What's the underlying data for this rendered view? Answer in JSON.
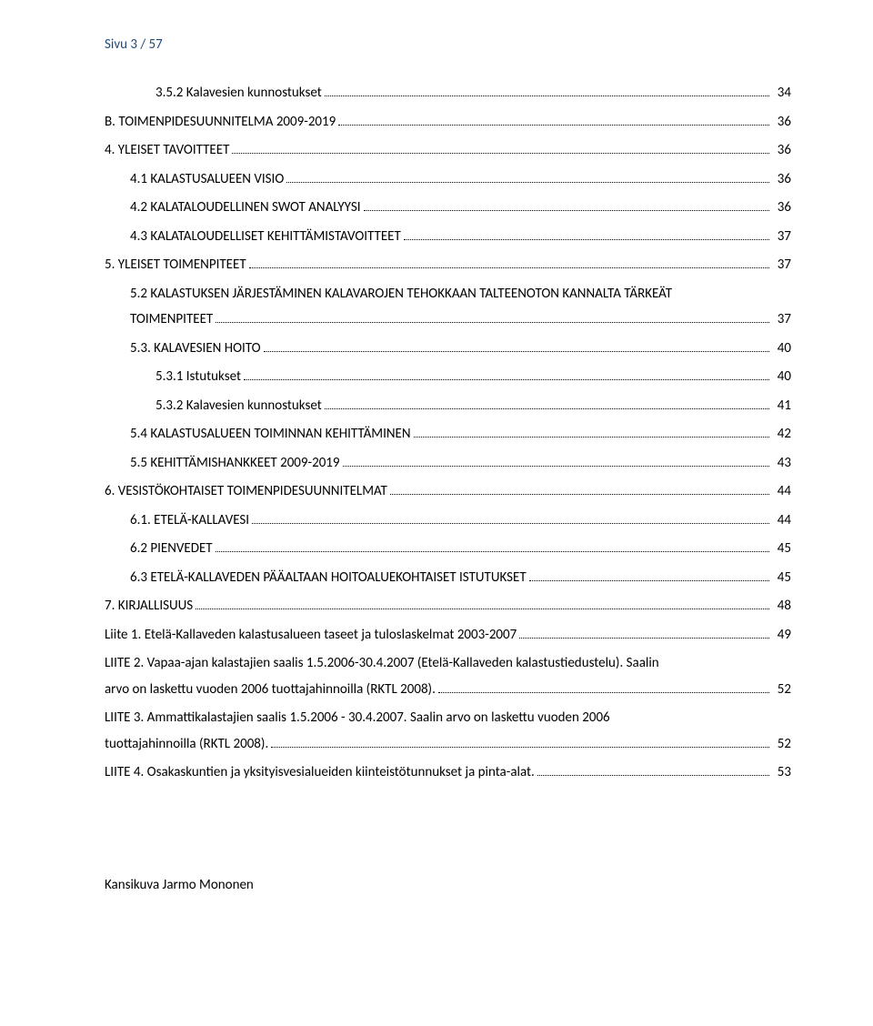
{
  "page_indicator": "Sivu 3 / 57",
  "caption": "Kansikuva Jarmo Mononen",
  "toc": [
    {
      "level": 2,
      "text": "3.5.2 Kalavesien kunnostukset",
      "page": "34"
    },
    {
      "level": 0,
      "text": "B. TOIMENPIDESUUNNITELMA 2009-2019",
      "page": "36"
    },
    {
      "level": 0,
      "text": "4. YLEISET TAVOITTEET",
      "page": "36"
    },
    {
      "level": 1,
      "text": "4.1 KALASTUSALUEEN VISIO",
      "page": "36"
    },
    {
      "level": 1,
      "text": "4.2 KALATALOUDELLINEN SWOT ANALYYSI",
      "page": "36"
    },
    {
      "level": 1,
      "text": "4.3 KALATALOUDELLISET KEHITTÄMISTAVOITTEET",
      "page": "37"
    },
    {
      "level": 0,
      "text": "5. YLEISET TOIMENPITEET",
      "page": "37"
    },
    {
      "type": "para",
      "level": 1,
      "lines": [
        "5.2 KALASTUKSEN JÄRJESTÄMINEN KALAVAROJEN TEHOKKAAN TALTEENOTON KANNALTA TÄRKEÄT"
      ],
      "last": "TOIMENPITEET",
      "page": "37"
    },
    {
      "level": 1,
      "text": "5.3. KALAVESIEN HOITO",
      "page": "40"
    },
    {
      "level": 2,
      "text": "5.3.1 Istutukset",
      "page": "40"
    },
    {
      "level": 2,
      "text": "5.3.2 Kalavesien kunnostukset",
      "page": "41"
    },
    {
      "level": 1,
      "text": "5.4 KALASTUSALUEEN TOIMINNAN KEHITTÄMINEN",
      "page": "42"
    },
    {
      "level": 1,
      "text": "5.5 KEHITTÄMISHANKKEET 2009-2019",
      "page": "43"
    },
    {
      "level": 0,
      "text": "6. VESISTÖKOHTAISET TOIMENPIDESUUNNITELMAT",
      "page": "44"
    },
    {
      "level": 1,
      "text": "6.1. ETELÄ-KALLAVESI",
      "page": "44"
    },
    {
      "level": 1,
      "text": "6.2 PIENVEDET",
      "page": "45"
    },
    {
      "level": 1,
      "text": "6.3 ETELÄ-KALLAVEDEN PÄÄALTAAN HOITOALUEKOHTAISET ISTUTUKSET",
      "page": "45"
    },
    {
      "level": 0,
      "text": "7. KIRJALLISUUS",
      "page": "48"
    },
    {
      "level": 0,
      "text": "Liite 1. Etelä-Kallaveden kalastusalueen taseet ja tuloslaskelmat 2003-2007",
      "page": "49"
    },
    {
      "type": "para",
      "level": 0,
      "lines": [
        "LIITE 2. Vapaa-ajan kalastajien saalis 1.5.2006-30.4.2007 (Etelä-Kallaveden kalastustiedustelu). Saalin"
      ],
      "last": "arvo on laskettu vuoden 2006 tuottajahinnoilla (RKTL 2008).",
      "page": "52"
    },
    {
      "type": "para",
      "level": 0,
      "lines": [
        "LIITE  3. Ammattikalastajien  saalis 1.5.2006 - 30.4.2007. Saalin arvo on laskettu vuoden 2006"
      ],
      "last": "tuottajahinnoilla (RKTL 2008).",
      "page": "52"
    },
    {
      "level": 0,
      "text": "LIITE 4. Osakaskuntien ja yksityisvesialueiden kiinteistötunnukset ja pinta-alat.",
      "page": "53"
    }
  ],
  "colors": {
    "page_indicator": "#1f497d",
    "text": "#000000",
    "background": "#ffffff"
  }
}
